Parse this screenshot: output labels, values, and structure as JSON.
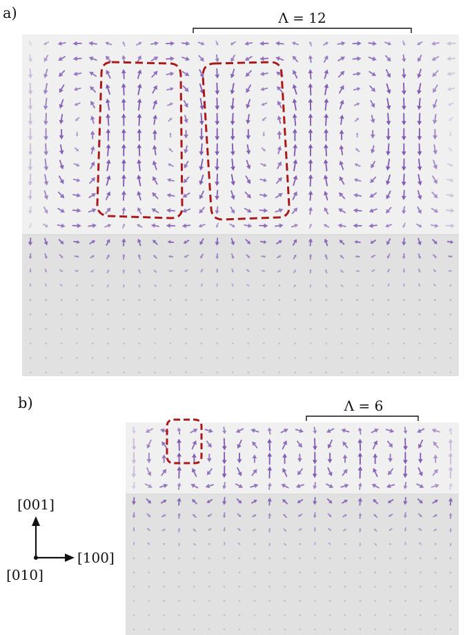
{
  "panels": [
    {
      "id": "a",
      "label": "a)",
      "period_label": "Λ = 12",
      "period_cells": 12,
      "lattice_cols": 28
    },
    {
      "id": "b",
      "label": "b)",
      "period_label": "Λ = 6",
      "period_cells": 6,
      "lattice_cols": 22
    }
  ],
  "axes": {
    "up": "[001]",
    "right": "[100]",
    "origin": "[010]"
  },
  "colors": {
    "arrow": "#7b55b0",
    "highlight": "#a81818",
    "top_layer": "#f0f0f0",
    "bottom_layer": "#e1e1e1",
    "ink": "#111111"
  }
}
